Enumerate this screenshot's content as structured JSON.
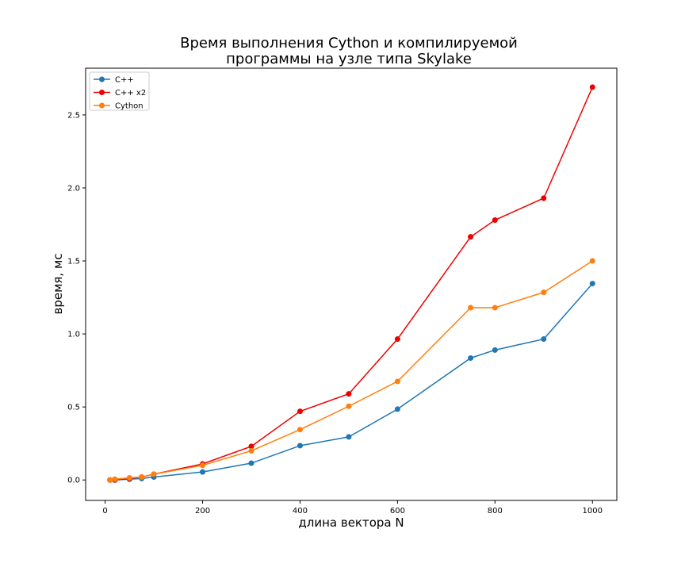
{
  "chart_data": {
    "type": "line",
    "title_lines": [
      "Время выполнения Cython и компилируемой",
      "программы на узле типа Skylake"
    ],
    "xlabel": "длина вектора N",
    "ylabel": "время, мс",
    "xlim": [
      -40,
      1050
    ],
    "ylim": [
      -0.14,
      2.82
    ],
    "xticks": [
      0,
      200,
      400,
      600,
      800,
      1000
    ],
    "yticks": [
      0.0,
      0.5,
      1.0,
      1.5,
      2.0,
      2.5
    ],
    "xtick_labels": [
      "0",
      "200",
      "400",
      "600",
      "800",
      "1000"
    ],
    "ytick_labels": [
      "0.0",
      "0.5",
      "1.0",
      "1.5",
      "2.0",
      "2.5"
    ],
    "grid": false,
    "legend_position": "top-left",
    "x": [
      10,
      20,
      50,
      75,
      100,
      200,
      300,
      400,
      500,
      600,
      750,
      800,
      900,
      1000
    ],
    "series": [
      {
        "name": "C++",
        "color": "#1f77b4",
        "values": [
          0.0,
          0.0,
          0.005,
          0.01,
          0.02,
          0.055,
          0.115,
          0.235,
          0.295,
          0.485,
          0.835,
          0.89,
          0.965,
          1.345
        ]
      },
      {
        "name": "C++ x2",
        "color": "#ee0000",
        "values": [
          0.0,
          0.0,
          0.01,
          0.02,
          0.04,
          0.11,
          0.23,
          0.47,
          0.59,
          0.965,
          1.665,
          1.78,
          1.93,
          2.69
        ]
      },
      {
        "name": "Cython",
        "color": "#ff7f0e",
        "values": [
          0.0,
          0.005,
          0.015,
          0.02,
          0.04,
          0.1,
          0.2,
          0.345,
          0.505,
          0.675,
          1.18,
          1.18,
          1.285,
          1.5
        ]
      }
    ]
  }
}
